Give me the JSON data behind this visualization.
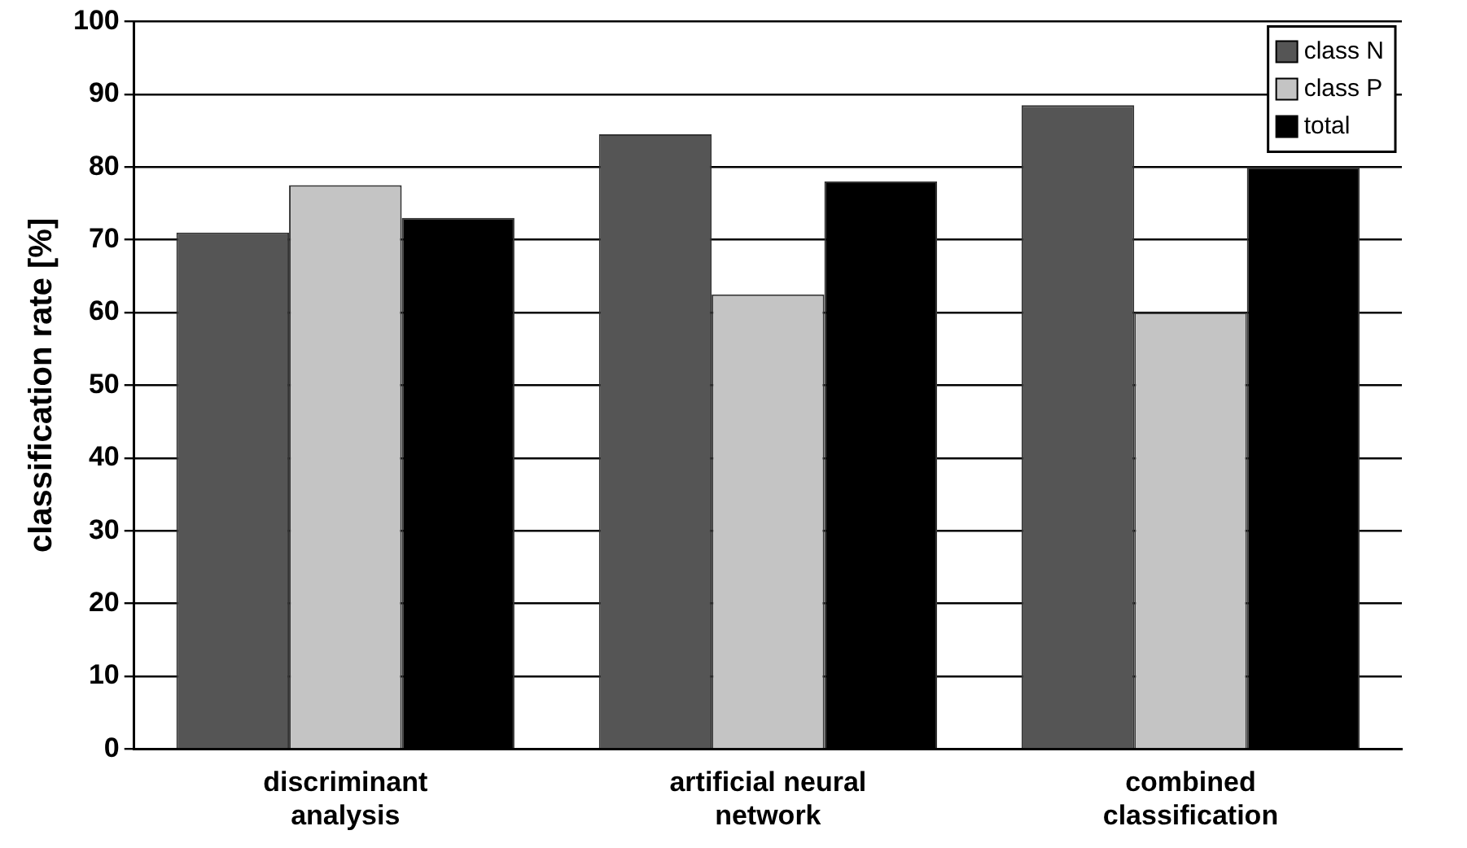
{
  "chart_data": {
    "type": "bar",
    "ylabel": "classification rate [%]",
    "categories": [
      "discriminant analysis",
      "artificial neural network",
      "combined classification"
    ],
    "series": [
      {
        "name": "class N",
        "color": "#555555",
        "values": [
          71,
          84.5,
          88.5
        ]
      },
      {
        "name": "class P",
        "color": "#c4c4c4",
        "values": [
          77.5,
          62.5,
          60
        ]
      },
      {
        "name": "total",
        "color": "#000000",
        "values": [
          73,
          78,
          80
        ]
      }
    ],
    "ylim": [
      0,
      100
    ],
    "yticks": [
      0,
      10,
      20,
      30,
      40,
      50,
      60,
      70,
      80,
      90,
      100
    ],
    "grid": "y",
    "legend": "top right"
  }
}
